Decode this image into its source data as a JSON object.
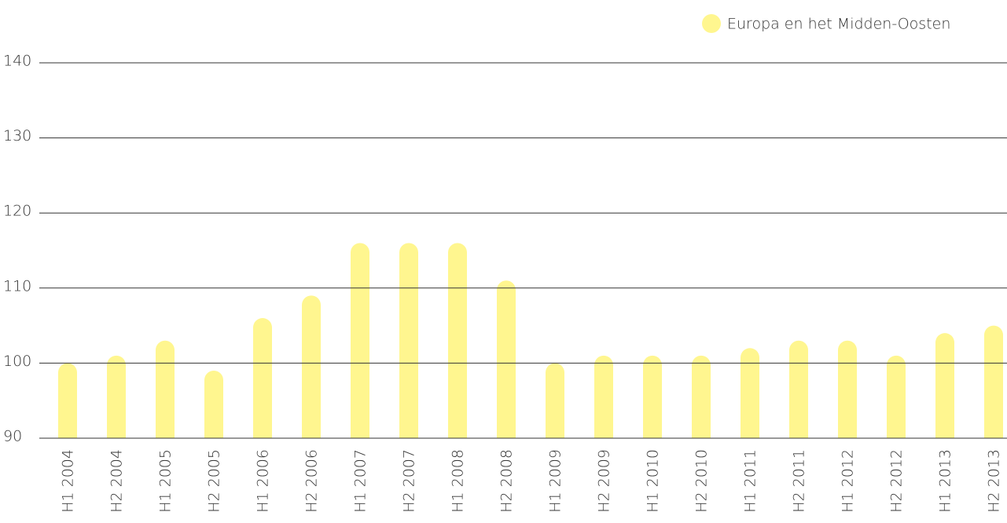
{
  "chart_data": {
    "type": "bar",
    "categories": [
      "H1 2004",
      "H2 2004",
      "H1 2005",
      "H2 2005",
      "H1 2006",
      "H2 2006",
      "H1 2007",
      "H2 2007",
      "H1 2008",
      "H2 2008",
      "H1 2009",
      "H2 2009",
      "H1 2010",
      "H2 2010",
      "H1 2011",
      "H2 2011",
      "H1 2012",
      "H2 2012",
      "H1 2013",
      "H2 2013"
    ],
    "series": [
      {
        "name": "Europa en het Midden-Oosten",
        "color": "#fff68f",
        "values": [
          100,
          101,
          103,
          99,
          106,
          109,
          116,
          116,
          116,
          111,
          100,
          101,
          101,
          101,
          102,
          103,
          103,
          101,
          104,
          105
        ]
      }
    ],
    "ylim": [
      90,
      140
    ],
    "yticks": [
      90,
      100,
      110,
      120,
      130,
      140
    ],
    "grid": true,
    "legend": "top-right"
  }
}
